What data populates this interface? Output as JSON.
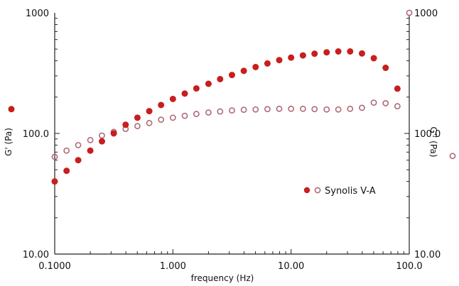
{
  "chart_data": {
    "type": "scatter",
    "xlabel": "frequency (Hz)",
    "ylabel_left": "G' (Pa)",
    "ylabel_right": "G'' (Pa)",
    "xscale": "log",
    "yscale": "log",
    "xlim": [
      0.1,
      100
    ],
    "ylim": [
      10,
      1000
    ],
    "x_ticks": [
      "0.1000",
      "1.000",
      "10.00",
      "100.0"
    ],
    "y_ticks_left": [
      "10.00",
      "100.0",
      "1000"
    ],
    "y_ticks_right": [
      "10.00",
      "100.0",
      "1000"
    ],
    "grid": false,
    "legend": {
      "label": "Synolis V-A",
      "position": "center-right"
    },
    "colors": {
      "g_prime": "#c81e1e",
      "g_double_prime": "#b06a78"
    },
    "series": [
      {
        "name": "G'",
        "marker": "filled-circle",
        "axis": "left",
        "x": [
          0.1,
          0.126,
          0.158,
          0.2,
          0.251,
          0.316,
          0.398,
          0.501,
          0.631,
          0.794,
          1.0,
          1.26,
          1.58,
          2.0,
          2.51,
          3.16,
          3.98,
          5.01,
          6.31,
          7.94,
          10.0,
          12.6,
          15.8,
          20.0,
          25.1,
          31.6,
          39.8,
          50.1,
          63.1,
          79.4
        ],
        "values": [
          40,
          49,
          60,
          72,
          86,
          100,
          118,
          135,
          153,
          172,
          193,
          214,
          236,
          258,
          282,
          305,
          330,
          355,
          380,
          405,
          425,
          443,
          458,
          470,
          478,
          478,
          460,
          420,
          350,
          235
        ]
      },
      {
        "name": "G''",
        "marker": "open-circle",
        "axis": "right",
        "x": [
          0.1,
          0.126,
          0.158,
          0.2,
          0.251,
          0.316,
          0.398,
          0.501,
          0.631,
          0.794,
          1.0,
          1.26,
          1.58,
          2.0,
          2.51,
          3.16,
          3.98,
          5.01,
          6.31,
          7.94,
          10.0,
          12.6,
          15.8,
          20.0,
          25.1,
          31.6,
          39.8,
          50.1,
          63.1,
          79.4
        ],
        "values": [
          64,
          72,
          80,
          88,
          96,
          103,
          109,
          115,
          122,
          130,
          135,
          140,
          145,
          149,
          152,
          155,
          157,
          158,
          159,
          160,
          160,
          160,
          159,
          158,
          158,
          160,
          163,
          180,
          178,
          168
        ]
      }
    ],
    "edge_markers": [
      {
        "series": "G'",
        "side": "left",
        "y": 159
      },
      {
        "series": "G''",
        "side": "right",
        "y": 65
      },
      {
        "series": "G''",
        "side": "right",
        "y": 1000
      }
    ]
  }
}
